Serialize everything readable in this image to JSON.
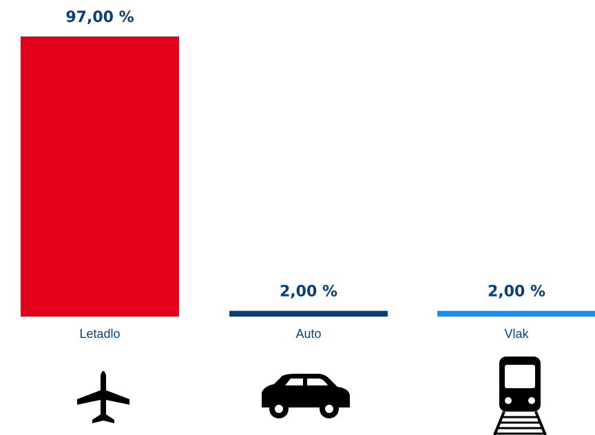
{
  "chart_data": {
    "type": "bar",
    "categories": [
      "Letadlo",
      "Auto",
      "Vlak"
    ],
    "values": [
      97,
      2,
      2
    ],
    "value_labels": [
      "97,00 %",
      "2,00 %",
      "2,00 %"
    ],
    "colors": [
      "#e2001a",
      "#0a3f78",
      "#1a8ff0"
    ]
  }
}
